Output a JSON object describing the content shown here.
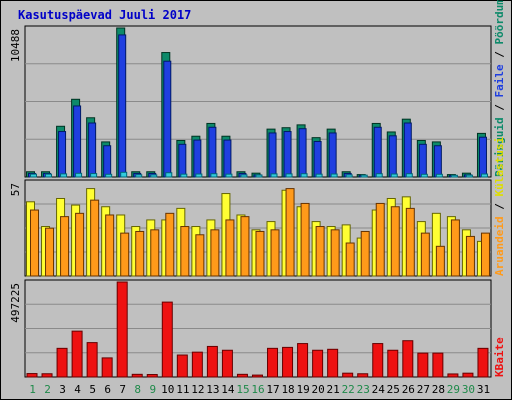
{
  "chart_data": {
    "type": "bar",
    "title": "Kasutuspäevad Juuli 2017",
    "categories": [
      "1",
      "2",
      "3",
      "4",
      "5",
      "6",
      "7",
      "8",
      "9",
      "10",
      "11",
      "12",
      "13",
      "14",
      "15",
      "16",
      "17",
      "18",
      "19",
      "20",
      "21",
      "22",
      "23",
      "24",
      "25",
      "26",
      "27",
      "28",
      "29",
      "30",
      "31"
    ],
    "weekend_days": [
      "1",
      "2",
      "8",
      "9",
      "15",
      "16",
      "22",
      "23",
      "29",
      "30"
    ],
    "grid": true,
    "colors": {
      "title": "#0000c8",
      "weekday_label": "#000000",
      "weekend_label": "#1f8a4a",
      "panel_bg": "#c0c0c0",
      "hits": "#0d8a6a",
      "files": "#1f3fe0",
      "pages": "#33ccdd",
      "visits": "#ffff33",
      "sites": "#ff9a1a",
      "kbytes": "#ee1111"
    },
    "panels": [
      {
        "id": "top",
        "max_label": "10488",
        "ylim": [
          0,
          10488
        ],
        "legend": [
          {
            "text": "Päringuid",
            "color": "#0d8a6a"
          },
          {
            "text": " / ",
            "color": "#000000"
          },
          {
            "text": "Faile",
            "color": "#1f3fe0"
          },
          {
            "text": " / ",
            "color": "#000000"
          },
          {
            "text": "Pöördumisi",
            "color": "#0d8a6a"
          }
        ],
        "series": [
          {
            "name": "Päringuid",
            "values": [
              370,
              370,
              3570,
              5470,
              4170,
              2470,
              10488,
              370,
              370,
              8760,
              2570,
              2870,
              3770,
              2870,
              370,
              270,
              3370,
              3470,
              3670,
              2770,
              3370,
              370,
              170,
              3770,
              3170,
              4070,
              2570,
              2470,
              170,
              270,
              3070
            ]
          },
          {
            "name": "Faile",
            "values": [
              250,
              250,
              3200,
              5000,
              3800,
              2200,
              10000,
              250,
              250,
              8150,
              2300,
              2600,
              3500,
              2600,
              250,
              150,
              3100,
              3200,
              3400,
              2500,
              3100,
              250,
              100,
              3500,
              2900,
              3800,
              2300,
              2200,
              100,
              150,
              2800
            ]
          },
          {
            "name": "Pöördumisi",
            "values": [
              200,
              200,
              220,
              260,
              240,
              190,
              330,
              160,
              150,
              300,
              200,
              210,
              230,
              200,
              150,
              140,
              220,
              220,
              230,
              200,
              210,
              150,
              130,
              230,
              210,
              230,
              190,
              190,
              120,
              130,
              210
            ]
          }
        ]
      },
      {
        "id": "middle",
        "max_label": "57",
        "ylim": [
          0,
          57
        ],
        "legend": [
          {
            "text": "Aruandeid",
            "color": "#ff9a1a"
          },
          {
            "text": " / ",
            "color": "#000000"
          },
          {
            "text": "Külastusi",
            "color": "#dddd00"
          }
        ],
        "series": [
          {
            "name": "Külastusi",
            "values": [
              45,
              30,
              47,
              43,
              53,
              42,
              37,
              30,
              34,
              34,
              41,
              30,
              34,
              50,
              37,
              28,
              33,
              52,
              42,
              33,
              30,
              31,
              23,
              40,
              47,
              48,
              33,
              38,
              36,
              28,
              21
            ]
          },
          {
            "name": "Aruandeid",
            "values": [
              40,
              29,
              36,
              38,
              46,
              37,
              26,
              27,
              28,
              38,
              30,
              25,
              28,
              34,
              36,
              27,
              28,
              53,
              44,
              30,
              28,
              20,
              27,
              44,
              42,
              41,
              26,
              18,
              34,
              24,
              26
            ]
          }
        ]
      },
      {
        "id": "bottom",
        "max_label": "497225",
        "ylim": [
          0,
          497225
        ],
        "legend": [
          {
            "text": "KBaite",
            "color": "#ee1111"
          }
        ],
        "series": [
          {
            "name": "KBaite",
            "values": [
              18000,
              17000,
              150000,
              240000,
              180000,
              100000,
              497225,
              14000,
              13000,
              392000,
              115000,
              130000,
              160000,
              140000,
              14000,
              10000,
              150000,
              155000,
              175000,
              140000,
              145000,
              20000,
              17000,
              175000,
              140000,
              190000,
              125000,
              125000,
              16000,
              20000,
              150000
            ]
          }
        ]
      }
    ]
  }
}
